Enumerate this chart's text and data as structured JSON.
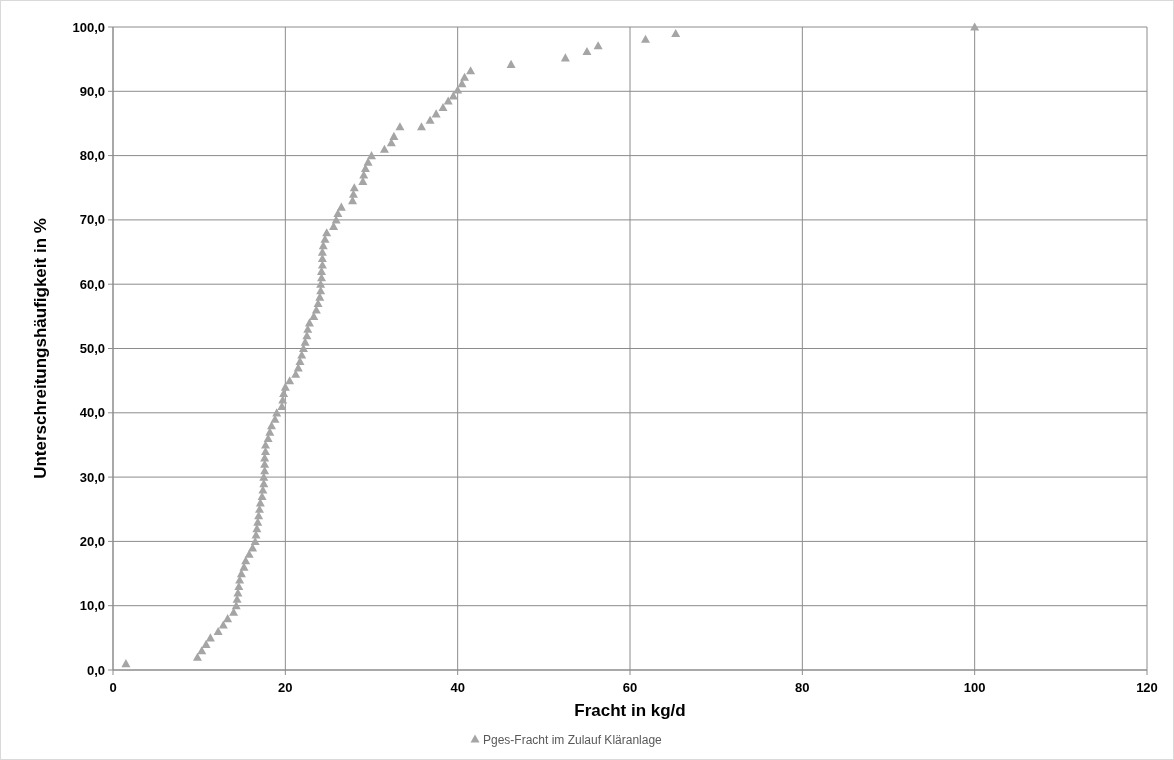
{
  "chart_data": {
    "type": "scatter",
    "xlabel": "Fracht in kg/d",
    "ylabel": "Unterschreitungshäufigkeit in %",
    "xlim": [
      0,
      120
    ],
    "xticks": [
      0,
      20,
      40,
      60,
      80,
      100,
      120
    ],
    "ylim": [
      0,
      100
    ],
    "yticks": [
      {
        "value": 0,
        "label": "0,0"
      },
      {
        "value": 10,
        "label": "10,0"
      },
      {
        "value": 20,
        "label": "20,0"
      },
      {
        "value": 30,
        "label": "30,0"
      },
      {
        "value": 40,
        "label": "40,0"
      },
      {
        "value": 50,
        "label": "50,0"
      },
      {
        "value": 60,
        "label": "60,0"
      },
      {
        "value": 70,
        "label": "70,0"
      },
      {
        "value": 80,
        "label": "80,0"
      },
      {
        "value": 90,
        "label": "90,0"
      },
      {
        "value": 100,
        "label": "100,0"
      }
    ],
    "grid": true,
    "legend": "bottom",
    "marker": "triangle",
    "series": [
      {
        "name": "Pges-Fracht im Zulauf Kläranlage",
        "color": "#a5a5a5",
        "x": [
          1.5,
          9.8,
          10.3,
          10.8,
          11.3,
          12.2,
          12.8,
          13.3,
          14.0,
          14.3,
          14.4,
          14.5,
          14.6,
          14.7,
          14.9,
          15.2,
          15.4,
          15.8,
          16.2,
          16.5,
          16.6,
          16.7,
          16.8,
          16.9,
          17.0,
          17.1,
          17.3,
          17.4,
          17.5,
          17.5,
          17.6,
          17.6,
          17.6,
          17.7,
          17.7,
          18.0,
          18.2,
          18.4,
          18.8,
          19.0,
          19.6,
          19.7,
          19.8,
          20.0,
          20.5,
          21.2,
          21.5,
          21.7,
          21.9,
          22.1,
          22.3,
          22.5,
          22.6,
          22.8,
          23.3,
          23.6,
          23.8,
          24.0,
          24.1,
          24.1,
          24.2,
          24.2,
          24.3,
          24.3,
          24.3,
          24.4,
          24.6,
          24.8,
          25.6,
          25.9,
          26.1,
          26.5,
          27.8,
          27.9,
          28.0,
          29.0,
          29.1,
          29.3,
          29.6,
          30.0,
          31.5,
          32.3,
          32.6,
          33.3,
          35.8,
          36.8,
          37.5,
          38.3,
          38.9,
          39.5,
          40.0,
          40.5,
          40.8,
          41.5,
          46.2,
          52.5,
          55.0,
          56.3,
          61.8,
          65.3,
          100
        ],
        "values": [
          1,
          2,
          3,
          4,
          5,
          6,
          7,
          8,
          9,
          10,
          11,
          12,
          13,
          14,
          15,
          16,
          17,
          18,
          19,
          20,
          21,
          22,
          23,
          24,
          25,
          26,
          27,
          28,
          29,
          30,
          31,
          32,
          33,
          34,
          35,
          36,
          37,
          38,
          39,
          40,
          41,
          42,
          43,
          44,
          45,
          46,
          47,
          48,
          49,
          50,
          51,
          52,
          53,
          54,
          55,
          56,
          57,
          58,
          59,
          60,
          61,
          62,
          63,
          64,
          65,
          66,
          67,
          68,
          69,
          70,
          71,
          72,
          73,
          74,
          75,
          76,
          77,
          78,
          79,
          80,
          81,
          82,
          83,
          84.5,
          84.5,
          85.5,
          86.5,
          87.5,
          88.5,
          89.3,
          90.2,
          91.2,
          92.2,
          93.2,
          94.2,
          95.2,
          96.2,
          97.1,
          98.1,
          99.0,
          100
        ]
      }
    ]
  }
}
